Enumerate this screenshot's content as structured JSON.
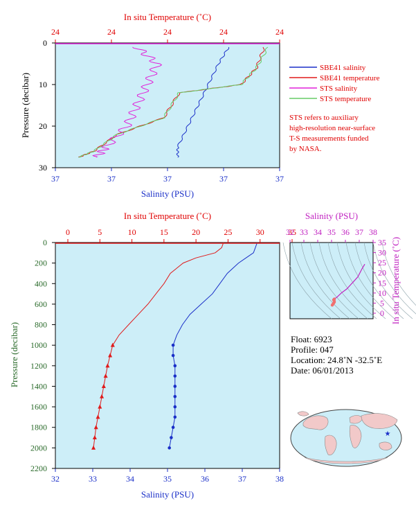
{
  "colors": {
    "plot_bg": "#cdeef8",
    "salinity_blue": "#1a2fc8",
    "temp_red": "#e01a1a",
    "sts_sal": "#e020d8",
    "sts_temp": "#66cc66",
    "axis_red": "#e00000",
    "axis_blue": "#1a2fc8",
    "axis_green": "#2a6a2a",
    "magenta": "#c020c0"
  },
  "top_panel": {
    "top_axis_title": "In situ Temperature (˚C)",
    "bottom_axis_title": "Salinity (PSU)",
    "y_axis_title": "Pressure (decibar)",
    "temp_ticks": [
      "24",
      "24",
      "24",
      "24",
      "24"
    ],
    "sal_ticks": [
      "37",
      "37",
      "37",
      "37",
      "37"
    ],
    "pressure_ticks": [
      "0",
      "10",
      "20",
      "30"
    ],
    "legend": [
      {
        "label": "SBE41 salinity",
        "color": "#1a2fc8"
      },
      {
        "label": "SBE41 temperature",
        "color": "#e01a1a"
      },
      {
        "label": "STS salinity",
        "color": "#e020d8"
      },
      {
        "label": "STS temperature",
        "color": "#66cc66"
      }
    ],
    "note_lines": [
      "STS refers to auxiliary",
      "high-resolution near-surface",
      "T-S measurements funded",
      "by NASA."
    ]
  },
  "main_panel": {
    "top_axis_title": "In situ Temperature (˚C)",
    "bottom_axis_title": "Salinity (PSU)",
    "y_axis_title": "Pressure (decibar)",
    "temp_ticks": [
      "0",
      "5",
      "10",
      "15",
      "20",
      "25",
      "30",
      "35"
    ],
    "sal_ticks": [
      "32",
      "33",
      "34",
      "35",
      "36",
      "37",
      "38"
    ],
    "pressure_ticks": [
      "0",
      "200",
      "400",
      "600",
      "800",
      "1000",
      "1200",
      "1400",
      "1600",
      "1800",
      "2000",
      "2200"
    ]
  },
  "ts_panel": {
    "top_axis_title": "Salinity (PSU)",
    "right_axis_title": "In situ Temperature (˚C)",
    "sal_ticks": [
      "32",
      "33",
      "34",
      "35",
      "36",
      "37",
      "38"
    ],
    "temp_ticks": [
      "0",
      "5",
      "10",
      "15",
      "20",
      "25",
      "30",
      "35"
    ]
  },
  "info": {
    "float_line": "Float:  6923",
    "profile_line": "Profile:  047",
    "location_line": "Location:  24.8˚N  -32.5˚E",
    "date_line": "Date:  06/01/2013"
  },
  "chart_data": [
    {
      "type": "line",
      "title": "",
      "xlabel": "Salinity (PSU)",
      "x2label": "In situ Temperature (˚C)",
      "ylabel": "Pressure (decibar)",
      "ylim": [
        0,
        30
      ],
      "y_inverted": true,
      "series": [
        {
          "name": "SBE41 salinity",
          "x_units": "salinity",
          "points": [
            [
              37.35,
              1
            ],
            [
              37.3,
              5
            ],
            [
              37.25,
              10
            ],
            [
              37.2,
              15
            ],
            [
              37.15,
              20
            ],
            [
              37.1,
              25
            ],
            [
              37.1,
              27.5
            ]
          ]
        },
        {
          "name": "SBE41 temperature",
          "x_units": "temperature",
          "points": [
            [
              24.2,
              1
            ],
            [
              24.1,
              6
            ],
            [
              23.9,
              10
            ],
            [
              23.1,
              12
            ],
            [
              22.9,
              18
            ],
            [
              22.3,
              22
            ],
            [
              22.0,
              26
            ],
            [
              21.8,
              27.5
            ]
          ]
        },
        {
          "name": "STS salinity",
          "x_units": "salinity",
          "points": [
            [
              36.9,
              1
            ],
            [
              37.0,
              5
            ],
            [
              36.95,
              10
            ],
            [
              36.9,
              15
            ],
            [
              36.85,
              20
            ],
            [
              36.75,
              25
            ],
            [
              36.7,
              27.5
            ]
          ]
        },
        {
          "name": "STS temperature",
          "x_units": "temperature",
          "points": [
            [
              24.25,
              1
            ],
            [
              24.1,
              6
            ],
            [
              23.9,
              10
            ],
            [
              23.1,
              12
            ],
            [
              22.9,
              18
            ],
            [
              22.3,
              22
            ],
            [
              22.0,
              26
            ],
            [
              21.8,
              27.5
            ]
          ]
        }
      ]
    },
    {
      "type": "line",
      "title": "",
      "xlabel": "Salinity (PSU)",
      "x2label": "In situ Temperature (˚C)",
      "ylabel": "Pressure (decibar)",
      "xlim_salinity": [
        32,
        38
      ],
      "xlim_temperature": [
        0,
        35
      ],
      "ylim": [
        0,
        2200
      ],
      "y_inverted": true,
      "series": [
        {
          "name": "",
          "x_units": "temperature",
          "points": [
            [
              24.3,
              0
            ],
            [
              24,
              50
            ],
            [
              23,
              100
            ],
            [
              20,
              150
            ],
            [
              18,
              200
            ],
            [
              16,
              300
            ],
            [
              15,
              400
            ],
            [
              14,
              480
            ],
            [
              12.5,
              600
            ],
            [
              11,
              700
            ],
            [
              9.5,
              800
            ],
            [
              8,
              900
            ],
            [
              7,
              1000
            ],
            [
              6.6,
              1100
            ],
            [
              6.2,
              1200
            ],
            [
              5.9,
              1300
            ],
            [
              5.6,
              1400
            ],
            [
              5.3,
              1500
            ],
            [
              5,
              1600
            ],
            [
              4.7,
              1700
            ],
            [
              4.4,
              1800
            ],
            [
              4.2,
              1900
            ],
            [
              4.0,
              2000
            ]
          ],
          "markers_from": 1000
        },
        {
          "name": "",
          "x_units": "salinity",
          "points": [
            [
              37.4,
              0
            ],
            [
              37.35,
              50
            ],
            [
              37.3,
              100
            ],
            [
              37.1,
              150
            ],
            [
              36.9,
              200
            ],
            [
              36.6,
              300
            ],
            [
              36.4,
              400
            ],
            [
              36.2,
              500
            ],
            [
              35.9,
              600
            ],
            [
              35.6,
              700
            ],
            [
              35.4,
              800
            ],
            [
              35.25,
              900
            ],
            [
              35.15,
              1000
            ],
            [
              35.15,
              1100
            ],
            [
              35.2,
              1200
            ],
            [
              35.2,
              1300
            ],
            [
              35.2,
              1400
            ],
            [
              35.2,
              1500
            ],
            [
              35.2,
              1600
            ],
            [
              35.2,
              1700
            ],
            [
              35.15,
              1800
            ],
            [
              35.1,
              1900
            ],
            [
              35.05,
              2000
            ]
          ],
          "markers_from": 1000
        }
      ]
    },
    {
      "type": "scatter",
      "title": "",
      "xlabel": "Salinity (PSU)",
      "ylabel": "In situ Temperature (˚C)",
      "xlim": [
        32,
        38
      ],
      "ylim": [
        0,
        35
      ],
      "series": [
        {
          "name": "",
          "points": [
            [
              37.4,
              24.3
            ],
            [
              37.2,
              22
            ],
            [
              36.9,
              18
            ],
            [
              36.5,
              15
            ],
            [
              36.1,
              12
            ],
            [
              35.7,
              10
            ],
            [
              35.4,
              8
            ],
            [
              35.2,
              7
            ],
            [
              35.15,
              6.6
            ],
            [
              35.2,
              6
            ],
            [
              35.2,
              5.5
            ],
            [
              35.15,
              5
            ],
            [
              35.1,
              4.5
            ],
            [
              35.05,
              4
            ]
          ]
        }
      ]
    }
  ]
}
